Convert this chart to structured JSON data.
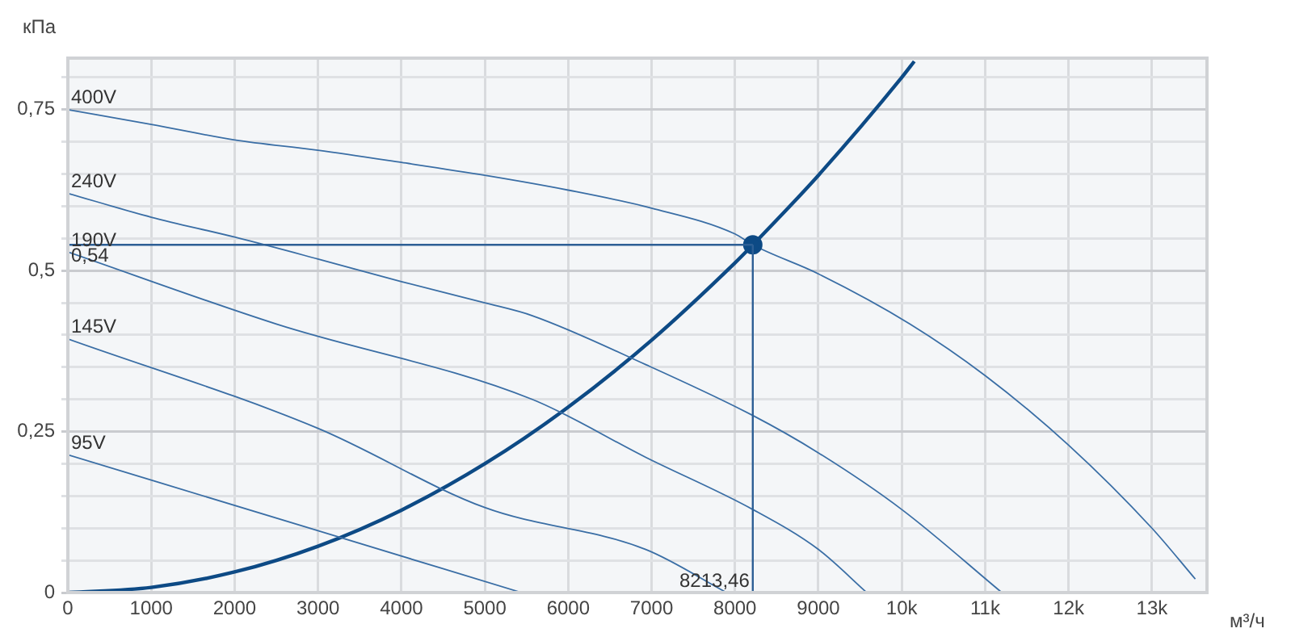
{
  "chart_data": {
    "type": "line",
    "xlabel": "м³/ч",
    "ylabel": "кПа",
    "xlim": [
      0,
      13660
    ],
    "ylim": [
      0,
      0.83
    ],
    "xticks": [
      0,
      1000,
      2000,
      3000,
      4000,
      5000,
      6000,
      7000,
      8000,
      9000,
      {
        "value": 10000,
        "label": "10k"
      },
      {
        "value": 11000,
        "label": "11k"
      },
      {
        "value": 12000,
        "label": "12k"
      },
      {
        "value": 13000,
        "label": "13k"
      }
    ],
    "yticks": [
      0,
      {
        "value": 0.05,
        "label": null
      },
      {
        "value": 0.1,
        "label": null
      },
      {
        "value": 0.15,
        "label": null
      },
      {
        "value": 0.2,
        "label": null
      },
      {
        "value": 0.25,
        "label": "0,25"
      },
      {
        "value": 0.3,
        "label": null
      },
      {
        "value": 0.35,
        "label": null
      },
      {
        "value": 0.4,
        "label": null
      },
      {
        "value": 0.45,
        "label": null
      },
      {
        "value": 0.5,
        "label": "0,5"
      },
      {
        "value": 0.55,
        "label": null
      },
      {
        "value": 0.6,
        "label": null
      },
      {
        "value": 0.65,
        "label": null
      },
      {
        "value": 0.7,
        "label": null
      },
      {
        "value": 0.75,
        "label": "0,75"
      },
      {
        "value": 0.8,
        "label": null
      }
    ],
    "grid": true,
    "legend": false,
    "marker": "none",
    "line_style": "solid",
    "series": [
      {
        "name": "400V",
        "color": "#3a6ea5",
        "x": [
          0,
          1000,
          2000,
          3000,
          4000,
          5000,
          6000,
          7000,
          8000,
          8213.46,
          9000,
          10100,
          11000,
          12000,
          13000,
          13520
        ],
        "values": [
          0.75,
          0.727,
          0.703,
          0.687,
          0.668,
          0.648,
          0.625,
          0.597,
          0.557,
          0.54,
          0.495,
          0.417,
          0.337,
          0.229,
          0.1,
          0.021
        ]
      },
      {
        "name": "240V",
        "color": "#3a6ea5",
        "x": [
          0,
          1000,
          2000,
          3000,
          4000,
          5000,
          5570,
          6930,
          8213.46,
          9000,
          10000,
          11200
        ],
        "values": [
          0.62,
          0.583,
          0.552,
          0.518,
          0.483,
          0.45,
          0.43,
          0.354,
          0.275,
          0.217,
          0.129,
          0
        ]
      },
      {
        "name": "190V",
        "color": "#3a6ea5",
        "x": [
          0,
          2500,
          5570,
          6930,
          8213.46,
          9000,
          9580
        ],
        "values": [
          0.529,
          0.417,
          0.3,
          0.21,
          0.129,
          0.067,
          0
        ]
      },
      {
        "name": "145V",
        "color": "#3a6ea5",
        "x": [
          0,
          3000,
          5000,
          6930,
          7900
        ],
        "values": [
          0.394,
          0.255,
          0.132,
          0.067,
          0
        ]
      },
      {
        "name": "95V",
        "color": "#3a6ea5",
        "x": [
          0,
          3000,
          5440
        ],
        "values": [
          0.214,
          0.096,
          0
        ]
      },
      {
        "color": "#0d4a85",
        "x": [
          0,
          1000,
          2000,
          3000,
          4000,
          5000,
          6000,
          7000,
          8000,
          8213.46,
          9000,
          10000,
          10150
        ],
        "values": [
          0,
          0.008,
          0.032,
          0.072,
          0.128,
          0.2,
          0.288,
          0.392,
          0.512,
          0.54,
          0.648,
          0.8,
          0.825
        ]
      },
      {
        "type": "scatter",
        "marker": "circle",
        "color": "#0d4a85",
        "x": [
          8213.46
        ],
        "values": [
          0.54
        ]
      }
    ],
    "ref_lines": [
      {
        "axis": "y",
        "value": 0.54,
        "label": "0,54",
        "color": "#2d5f95"
      },
      {
        "axis": "x",
        "value": 8213.46,
        "label": "8213,46",
        "color": "#2d5f95"
      }
    ]
  }
}
